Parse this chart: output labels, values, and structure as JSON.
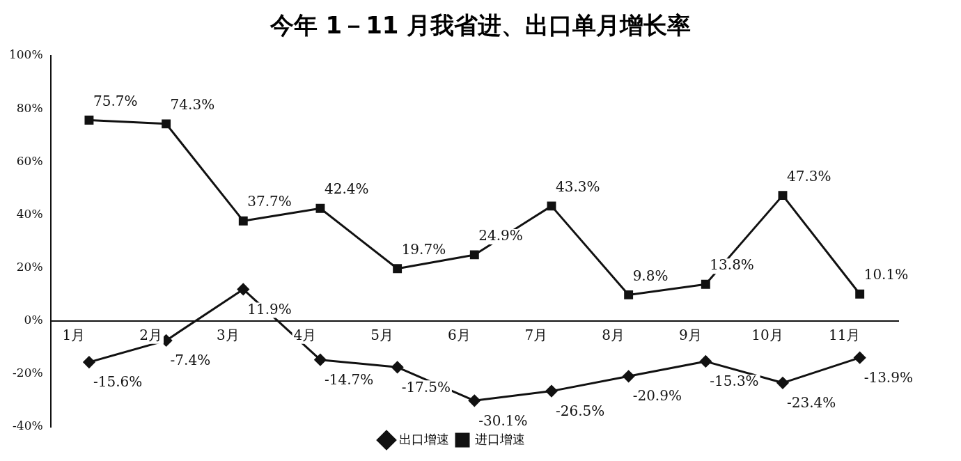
{
  "chart_data": {
    "type": "line",
    "title": "今年 1－11 月我省进、出口单月增长率",
    "categories": [
      "1月",
      "2月",
      "3月",
      "4月",
      "5月",
      "6月",
      "7月",
      "8月",
      "9月",
      "10月",
      "11月"
    ],
    "series": [
      {
        "name": "出口增速",
        "color": "#111111",
        "marker": "diamond",
        "values": [
          -15.6,
          -7.4,
          11.9,
          -14.7,
          -17.5,
          -30.1,
          -26.5,
          -20.9,
          -15.3,
          -23.4,
          -13.9
        ],
        "value_labels": [
          "-15.6%",
          "-7.4%",
          "11.9%",
          "-14.7%",
          "-17.5%",
          "-30.1%",
          "-26.5%",
          "-20.9%",
          "-15.3%",
          "-23.4%",
          "-13.9%"
        ]
      },
      {
        "name": "进口增速",
        "color": "#111111",
        "marker": "square",
        "values": [
          75.7,
          74.3,
          37.7,
          42.4,
          19.7,
          24.9,
          43.3,
          9.8,
          13.8,
          47.3,
          10.1
        ],
        "value_labels": [
          "75.7%",
          "74.3%",
          "37.7%",
          "42.4%",
          "19.7%",
          "24.9%",
          "43.3%",
          "9.8%",
          "13.8%",
          "47.3%",
          "10.1%"
        ]
      }
    ],
    "ylim": [
      -40,
      100
    ],
    "yticks": [
      {
        "value": -40,
        "label": "-40%"
      },
      {
        "value": -20,
        "label": "-20%"
      },
      {
        "value": 0,
        "label": "0%"
      },
      {
        "value": 20,
        "label": "20%"
      },
      {
        "value": 40,
        "label": "40%"
      },
      {
        "value": 60,
        "label": "60%"
      },
      {
        "value": 80,
        "label": "80%"
      },
      {
        "value": 100,
        "label": "100%"
      }
    ],
    "grid": false,
    "legend": "bottom",
    "line_style": "solid"
  }
}
